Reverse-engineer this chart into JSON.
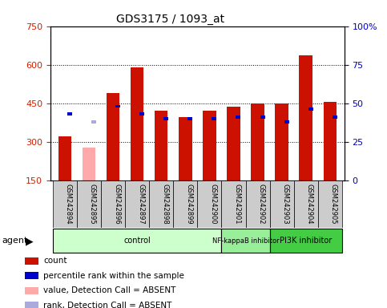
{
  "title": "GDS3175 / 1093_at",
  "samples": [
    "GSM242894",
    "GSM242895",
    "GSM242896",
    "GSM242897",
    "GSM242898",
    "GSM242899",
    "GSM242900",
    "GSM242901",
    "GSM242902",
    "GSM242903",
    "GSM242904",
    "GSM242905"
  ],
  "red_values": [
    320,
    0,
    490,
    590,
    420,
    395,
    420,
    435,
    450,
    450,
    635,
    455
  ],
  "pink_values": [
    0,
    278,
    0,
    0,
    0,
    0,
    0,
    0,
    0,
    0,
    0,
    0
  ],
  "blue_pct": [
    43,
    0,
    48,
    43,
    40,
    40,
    40,
    41,
    41,
    38,
    46,
    41
  ],
  "lav_pct": [
    0,
    38,
    0,
    0,
    0,
    0,
    0,
    0,
    0,
    0,
    0,
    0
  ],
  "absent_mask": [
    false,
    true,
    false,
    false,
    false,
    false,
    false,
    false,
    false,
    false,
    false,
    false
  ],
  "ylim_left": [
    150,
    750
  ],
  "ylim_right": [
    0,
    100
  ],
  "yticks_left": [
    150,
    300,
    450,
    600,
    750
  ],
  "yticks_right_vals": [
    0,
    25,
    50,
    75,
    100
  ],
  "yticks_right_labels": [
    "0",
    "25",
    "50",
    "75",
    "100%"
  ],
  "groups": [
    {
      "label": "control",
      "start": 0,
      "end": 7,
      "color": "#ccffcc"
    },
    {
      "label": "NF-kappaB inhibitor",
      "start": 7,
      "end": 9,
      "color": "#99ee99"
    },
    {
      "label": "PI3K inhibitor",
      "start": 9,
      "end": 12,
      "color": "#44cc44"
    }
  ],
  "agent_label": "agent",
  "red_color": "#cc1100",
  "pink_color": "#ffaaaa",
  "blue_color": "#0000cc",
  "lavender_color": "#aaaadd",
  "bg_color": "#ffffff",
  "grid_color": "#000000",
  "left_tick_color": "#cc2200",
  "right_tick_color": "#0000cc"
}
